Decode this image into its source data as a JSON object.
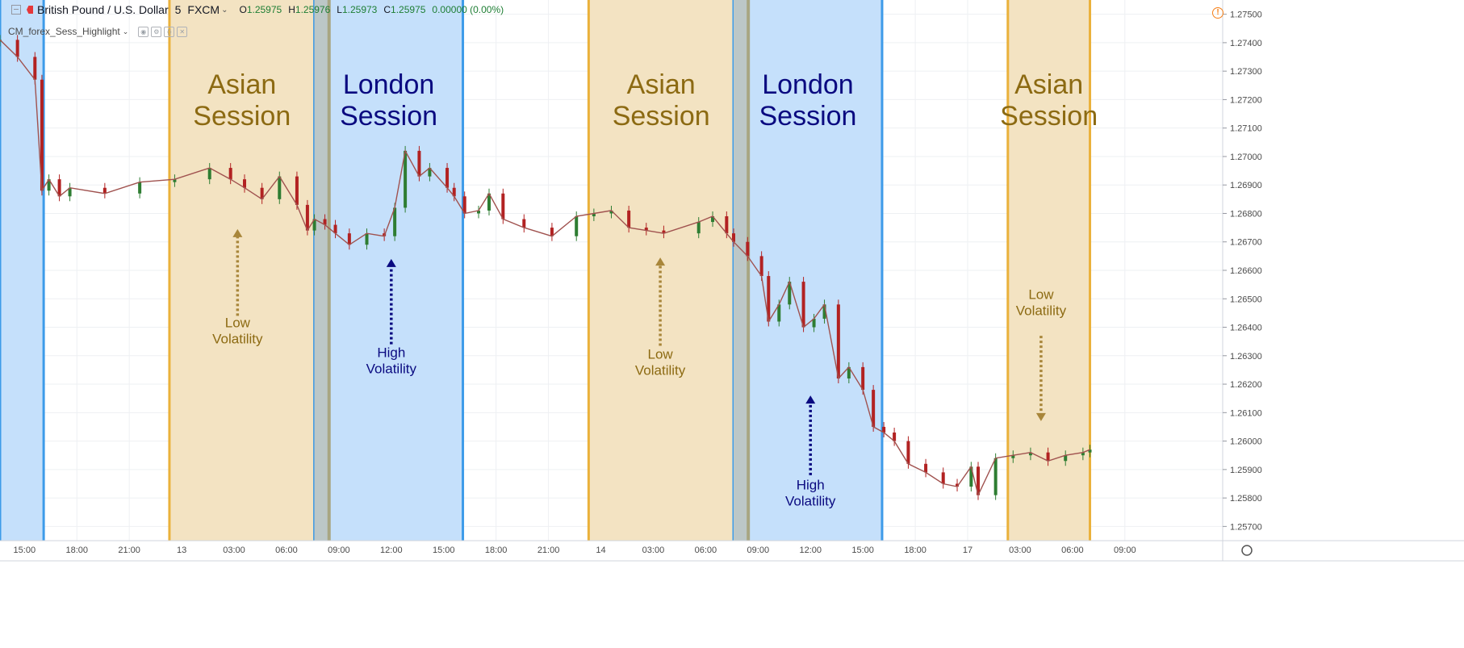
{
  "header": {
    "symbol": "British Pound / U.S. Dollar",
    "interval": "5",
    "exchange": "FXCM",
    "open_label": "O",
    "open": "1.25975",
    "high_label": "H",
    "high": "1.25976",
    "low_label": "L",
    "low": "1.25973",
    "close_label": "C",
    "close": "1.25975",
    "change": "0.00000 (0.00%)",
    "indicator": "CM_forex_Sess_Highlight",
    "alert_icon": "!"
  },
  "colors": {
    "london_fill": "#c5e0fb",
    "london_line": "#3d9be9",
    "asian_fill": "#f3e3c2",
    "asian_line": "#eab13b",
    "overlap_fill": "#bcc7c7",
    "overlap_line": "#a8a682",
    "london_text": "#0a0a80",
    "asian_text": "#8c6a12",
    "asian_arrow": "#a8863a",
    "london_arrow": "#0a0a80",
    "candle_up": "#2e7d32",
    "candle_down": "#b22222",
    "price_line": "#a0524f",
    "grid": "#eef0f3"
  },
  "chart_data": {
    "type": "line",
    "title": "British Pound / U.S. Dollar 5 FXCM",
    "ylim": [
      1.2565,
      1.2755
    ],
    "y_ticks": [
      "1.27500",
      "1.27400",
      "1.27300",
      "1.27200",
      "1.27100",
      "1.27000",
      "1.26900",
      "1.26800",
      "1.26700",
      "1.26600",
      "1.26500",
      "1.26400",
      "1.26300",
      "1.26200",
      "1.26100",
      "1.26000",
      "1.25900",
      "1.25800",
      "1.25700"
    ],
    "x_ticks": [
      "15:00",
      "18:00",
      "21:00",
      "13",
      "03:00",
      "06:00",
      "09:00",
      "12:00",
      "15:00",
      "18:00",
      "21:00",
      "14",
      "03:00",
      "06:00",
      "09:00",
      "12:00",
      "15:00",
      "18:00",
      "17",
      "03:00",
      "06:00",
      "09:00"
    ],
    "sessions": [
      {
        "type": "london",
        "label_line1": "",
        "label_line2": "",
        "from": 0.0,
        "to": 1.25
      },
      {
        "type": "asian",
        "label_line1": "Asian",
        "label_line2": "Session",
        "from": 4.85,
        "to": 9.0
      },
      {
        "type": "london",
        "label_line1": "London",
        "label_line2": "Session",
        "from": 9.0,
        "to": 13.25
      },
      {
        "type": "overlap",
        "from": 9.0,
        "to": 9.42
      },
      {
        "type": "asian",
        "label_line1": "Asian",
        "label_line2": "Session",
        "from": 16.85,
        "to": 21.0
      },
      {
        "type": "london",
        "label_line1": "London",
        "label_line2": "Session",
        "from": 21.0,
        "to": 25.25
      },
      {
        "type": "overlap",
        "from": 21.0,
        "to": 21.42
      },
      {
        "type": "asian",
        "label_line1": "Asian",
        "label_line2": "Session",
        "from": 28.85,
        "to": 31.2
      }
    ],
    "annotations": [
      {
        "kind": "asian",
        "line1": "Low",
        "line2": "Volatility",
        "x": 6.8,
        "arrow_dir": "up",
        "arrow_from": 1.2644,
        "arrow_to": 1.26745,
        "label_y": 1.264
      },
      {
        "kind": "london",
        "line1": "High",
        "line2": "Volatility",
        "x": 11.2,
        "arrow_dir": "up",
        "arrow_from": 1.2634,
        "arrow_to": 1.2664,
        "label_y": 1.26295
      },
      {
        "kind": "asian",
        "line1": "Low",
        "line2": "Volatility",
        "x": 18.9,
        "arrow_dir": "up",
        "arrow_from": 1.26335,
        "arrow_to": 1.26645,
        "label_y": 1.2629
      },
      {
        "kind": "london",
        "line1": "High",
        "line2": "Volatility",
        "x": 23.2,
        "arrow_dir": "up",
        "arrow_from": 1.2588,
        "arrow_to": 1.2616,
        "label_y": 1.2583
      },
      {
        "kind": "asian",
        "line1": "Low",
        "line2": "Volatility",
        "x": 29.8,
        "arrow_dir": "down",
        "arrow_from": 1.2637,
        "arrow_to": 1.2607,
        "label_y": 1.265
      }
    ],
    "x_hours_since_start": [
      0.0,
      0.5,
      1.0,
      1.2,
      1.4,
      1.7,
      2.0,
      3.0,
      4.0,
      5.0,
      6.0,
      6.6,
      7.0,
      7.5,
      8.0,
      8.5,
      8.8,
      9.0,
      9.3,
      9.6,
      10.0,
      10.5,
      11.0,
      11.3,
      11.6,
      12.0,
      12.3,
      12.8,
      13.0,
      13.3,
      13.7,
      14.0,
      14.4,
      15.0,
      15.8,
      16.5,
      17.0,
      17.5,
      18.0,
      18.5,
      19.0,
      20.0,
      20.4,
      20.8,
      21.0,
      21.4,
      21.8,
      22.0,
      22.3,
      22.6,
      23.0,
      23.3,
      23.6,
      24.0,
      24.3,
      24.7,
      25.0,
      25.3,
      25.6,
      26.0,
      26.5,
      27.0,
      27.4,
      27.8,
      28.0,
      28.5,
      29.0,
      29.5,
      30.0,
      30.5,
      31.0,
      31.2
    ],
    "close": [
      1.2741,
      1.2735,
      1.2727,
      1.2688,
      1.2692,
      1.2686,
      1.2689,
      1.2687,
      1.2691,
      1.2692,
      1.2696,
      1.2692,
      1.2689,
      1.2685,
      1.2693,
      1.2683,
      1.2674,
      1.2678,
      1.2676,
      1.2673,
      1.2669,
      1.2673,
      1.2672,
      1.2682,
      1.2702,
      1.2693,
      1.2696,
      1.2689,
      1.2686,
      1.268,
      1.2681,
      1.2687,
      1.2678,
      1.2675,
      1.2672,
      1.2679,
      1.268,
      1.2681,
      1.2675,
      1.2674,
      1.2673,
      1.2677,
      1.2679,
      1.2673,
      1.267,
      1.2665,
      1.2658,
      1.2642,
      1.2648,
      1.2656,
      1.264,
      1.2643,
      1.2648,
      1.2622,
      1.2626,
      1.2618,
      1.2605,
      1.2603,
      1.26,
      1.2592,
      1.2589,
      1.2585,
      1.2584,
      1.2591,
      1.2581,
      1.2594,
      1.2595,
      1.2596,
      1.2593,
      1.2595,
      1.2596,
      1.2597
    ]
  }
}
